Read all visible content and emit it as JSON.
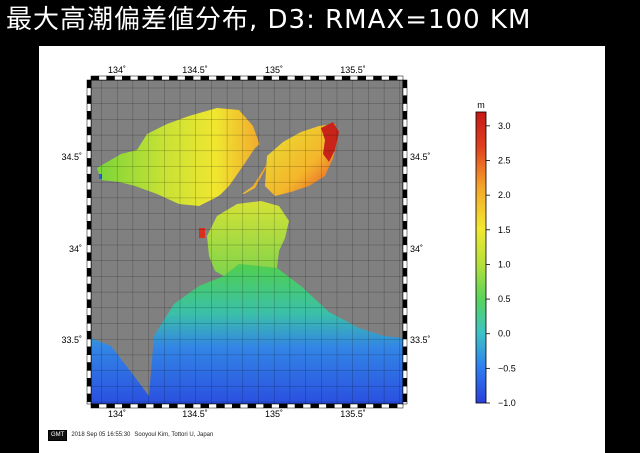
{
  "title": "最大高潮偏差値分布, D3: RMAX=100 KM",
  "map": {
    "lon_ticks": [
      "134˚",
      "134.5˚",
      "135˚",
      "135.5˚"
    ],
    "lat_ticks": [
      "34.5˚",
      "34˚",
      "33.5˚"
    ],
    "lon_range": [
      133.87,
      135.83
    ],
    "lat_range": [
      33.27,
      34.83
    ],
    "grid": true,
    "land_color": "#808080"
  },
  "colorbar": {
    "unit": "m",
    "ticks": [
      "3.0",
      "2.5",
      "2.0",
      "1.5",
      "1.0",
      "0.5",
      "0.0",
      "−0.5",
      "−1.0"
    ],
    "range": [
      -1.0,
      3.2
    ],
    "colors": [
      "#2a3fd9",
      "#2e7df0",
      "#3cc3c6",
      "#5ad45a",
      "#b8e03a",
      "#f2e831",
      "#f4a62a",
      "#e0401e",
      "#c41818"
    ]
  },
  "footer": {
    "logo": "GMT",
    "timestamp": "2018 Sep 05 16:55:30",
    "credit": "Sooyoul Kim, Tottori U, Japan"
  }
}
